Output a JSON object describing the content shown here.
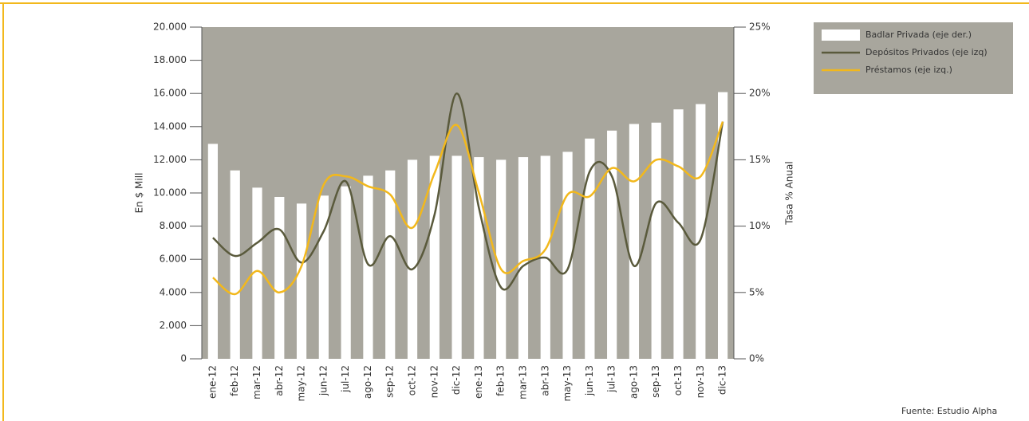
{
  "chart_data": {
    "type": "bar-line",
    "y_label": "En $ Mill",
    "y2_label": "Tasa % Anual",
    "source": "Fuente: Estudio Alpha",
    "categories": [
      "ene-12",
      "feb-12",
      "mar-12",
      "abr-12",
      "may-12",
      "jun-12",
      "jul-12",
      "ago-12",
      "sep-12",
      "oct-12",
      "nov-12",
      "dic-12",
      "ene-13",
      "feb-13",
      "mar-13",
      "abr-13",
      "may-13",
      "jun-13",
      "jul-13",
      "ago-13",
      "sep-13",
      "oct-13",
      "nov-13",
      "dic-13"
    ],
    "series": [
      {
        "name": "Badlar Privada (eje der.)",
        "color": "#ffffff",
        "kind": "bar",
        "axis": "y2",
        "values": [
          16.2,
          14.2,
          12.9,
          12.2,
          11.7,
          12.3,
          13.0,
          13.8,
          14.2,
          15.0,
          15.3,
          15.3,
          15.2,
          15.0,
          15.2,
          15.3,
          15.6,
          16.6,
          17.2,
          17.7,
          17.8,
          18.8,
          19.2,
          20.1
        ]
      },
      {
        "name": "Depósitos Privados (eje izq)",
        "color": "#5a5a3c",
        "kind": "line",
        "values": [
          7300,
          6200,
          7000,
          7800,
          5800,
          7700,
          10700,
          5700,
          7400,
          5400,
          8700,
          16000,
          9100,
          4300,
          5600,
          6100,
          5400,
          11300,
          11000,
          5600,
          9400,
          8200,
          7200,
          14300
        ]
      },
      {
        "name": "Préstamos (eje izq.)",
        "color": "#f2b81c",
        "kind": "line",
        "values": [
          4900,
          3900,
          5300,
          4000,
          5600,
          10500,
          11000,
          10400,
          9900,
          7900,
          11200,
          14100,
          10000,
          5400,
          5900,
          6600,
          9900,
          9800,
          11500,
          10700,
          12000,
          11600,
          11000,
          14300
        ]
      }
    ],
    "ylim": [
      0,
      20000
    ],
    "yticks": [
      0,
      {
        "value": 2000,
        "label": "2.000"
      },
      {
        "value": 4000,
        "label": "4.000"
      },
      {
        "value": 6000,
        "label": "6.000"
      },
      {
        "value": 8000,
        "label": "8.000"
      },
      {
        "value": 10000,
        "label": "10.000"
      },
      {
        "value": 12000,
        "label": "12.000"
      },
      {
        "value": 14000,
        "label": "14.000"
      },
      {
        "value": 16000,
        "label": "16.000"
      },
      {
        "value": 18000,
        "label": "18.000"
      },
      {
        "value": 20000,
        "label": "20.000"
      }
    ],
    "y2lim": [
      0,
      25
    ],
    "y2ticks": [
      {
        "value": 0,
        "label": "0%"
      },
      {
        "value": 5,
        "label": "5%"
      },
      {
        "value": 10,
        "label": "10%"
      },
      {
        "value": 15,
        "label": "15%"
      },
      {
        "value": 20,
        "label": "20%"
      },
      {
        "value": 25,
        "label": "25%"
      }
    ],
    "plot_background": "#a8a69d"
  }
}
